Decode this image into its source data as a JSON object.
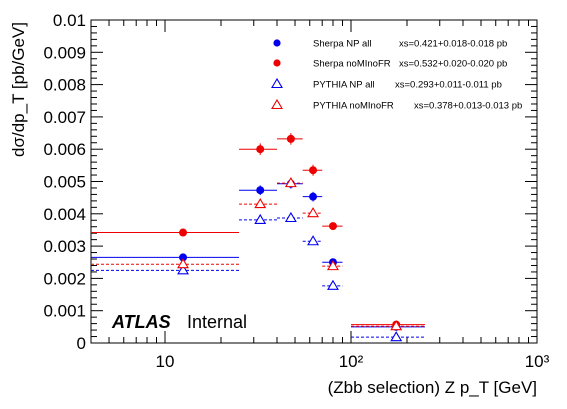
{
  "chart_data": {
    "type": "scatter",
    "title": "",
    "xlabel": "(Zbb selection) Z p_T [GeV]",
    "ylabel": "dσ/dp_T [pb/GeV]",
    "x_scale": "log",
    "xlim": [
      4,
      1000
    ],
    "ylim": [
      0,
      0.01
    ],
    "x_ticks": [
      {
        "value": 10,
        "label": "10"
      },
      {
        "value": 100,
        "label": "10²"
      },
      {
        "value": 1000,
        "label": "10³"
      }
    ],
    "y_ticks": [
      {
        "value": 0,
        "label": "0"
      },
      {
        "value": 0.001,
        "label": "0.001"
      },
      {
        "value": 0.002,
        "label": "0.002"
      },
      {
        "value": 0.003,
        "label": "0.003"
      },
      {
        "value": 0.004,
        "label": "0.004"
      },
      {
        "value": 0.005,
        "label": "0.005"
      },
      {
        "value": 0.006,
        "label": "0.006"
      },
      {
        "value": 0.007,
        "label": "0.007"
      },
      {
        "value": 0.008,
        "label": "0.008"
      },
      {
        "value": 0.009,
        "label": "0.009"
      },
      {
        "value": 0.01,
        "label": "0.01"
      }
    ],
    "grid": false,
    "legend_position": "top-right",
    "annotation": {
      "bold": "ATLAS",
      "normal": "Internal"
    },
    "series": [
      {
        "name": "Sherpa NP all",
        "xs": "xs=0.421+0.018-0.018 pb",
        "marker": "filled-circle",
        "color": "#0000ee",
        "line_style": "solid",
        "points": [
          {
            "x": 12.5,
            "xlo": 0,
            "xhi": 25,
            "y": 0.00265,
            "yerr": 8e-05
          },
          {
            "x": 32.5,
            "xlo": 25,
            "xhi": 40,
            "y": 0.00473,
            "yerr": 0.00015
          },
          {
            "x": 47.5,
            "xlo": 40,
            "xhi": 55,
            "y": 0.00493,
            "yerr": 0.00015
          },
          {
            "x": 62.5,
            "xlo": 55,
            "xhi": 70,
            "y": 0.00453,
            "yerr": 0.00015
          },
          {
            "x": 80,
            "xlo": 70,
            "xhi": 90,
            "y": 0.0025,
            "yerr": 0.0001
          },
          {
            "x": 175,
            "xlo": 100,
            "xhi": 250,
            "y": 0.0005,
            "yerr": 3e-05
          }
        ]
      },
      {
        "name": "Sherpa noMInoFR",
        "xs": "xs=0.532+0.020-0.020 pb",
        "marker": "filled-circle",
        "color": "#ee0000",
        "line_style": "solid",
        "points": [
          {
            "x": 12.5,
            "xlo": 0,
            "xhi": 25,
            "y": 0.00342,
            "yerr": 8e-05
          },
          {
            "x": 32.5,
            "xlo": 25,
            "xhi": 40,
            "y": 0.006,
            "yerr": 0.00018
          },
          {
            "x": 47.5,
            "xlo": 40,
            "xhi": 55,
            "y": 0.00632,
            "yerr": 0.00018
          },
          {
            "x": 62.5,
            "xlo": 55,
            "xhi": 70,
            "y": 0.00535,
            "yerr": 0.00017
          },
          {
            "x": 80,
            "xlo": 70,
            "xhi": 90,
            "y": 0.00362,
            "yerr": 0.0001
          },
          {
            "x": 175,
            "xlo": 100,
            "xhi": 250,
            "y": 0.00057,
            "yerr": 3e-05
          }
        ]
      },
      {
        "name": "PYTHIA NP all",
        "xs": "xs=0.293+0.011-0.011 pb",
        "marker": "open-triangle",
        "color": "#0000ee",
        "line_style": "dashed",
        "points": [
          {
            "x": 12.5,
            "xlo": 0,
            "xhi": 25,
            "y": 0.00225,
            "yerr": 7e-05
          },
          {
            "x": 32.5,
            "xlo": 25,
            "xhi": 40,
            "y": 0.00381,
            "yerr": 0.0001
          },
          {
            "x": 47.5,
            "xlo": 40,
            "xhi": 55,
            "y": 0.00387,
            "yerr": 0.0001
          },
          {
            "x": 62.5,
            "xlo": 55,
            "xhi": 70,
            "y": 0.00315,
            "yerr": 0.0001
          },
          {
            "x": 80,
            "xlo": 70,
            "xhi": 90,
            "y": 0.00177,
            "yerr": 8e-05
          },
          {
            "x": 175,
            "xlo": 100,
            "xhi": 250,
            "y": 0.00018,
            "yerr": 2e-05
          }
        ]
      },
      {
        "name": "PYTHIA noMInoFR",
        "xs": "xs=0.378+0.013-0.013 pb",
        "marker": "open-triangle",
        "color": "#ee0000",
        "line_style": "dashed",
        "points": [
          {
            "x": 12.5,
            "xlo": 0,
            "xhi": 25,
            "y": 0.00244,
            "yerr": 7e-05
          },
          {
            "x": 32.5,
            "xlo": 25,
            "xhi": 40,
            "y": 0.0043,
            "yerr": 0.00012
          },
          {
            "x": 47.5,
            "xlo": 40,
            "xhi": 55,
            "y": 0.00495,
            "yerr": 0.00012
          },
          {
            "x": 62.5,
            "xlo": 55,
            "xhi": 70,
            "y": 0.00402,
            "yerr": 0.00012
          },
          {
            "x": 80,
            "xlo": 70,
            "xhi": 90,
            "y": 0.00238,
            "yerr": 8e-05
          },
          {
            "x": 175,
            "xlo": 100,
            "xhi": 250,
            "y": 0.00052,
            "yerr": 3e-05
          }
        ]
      }
    ]
  }
}
